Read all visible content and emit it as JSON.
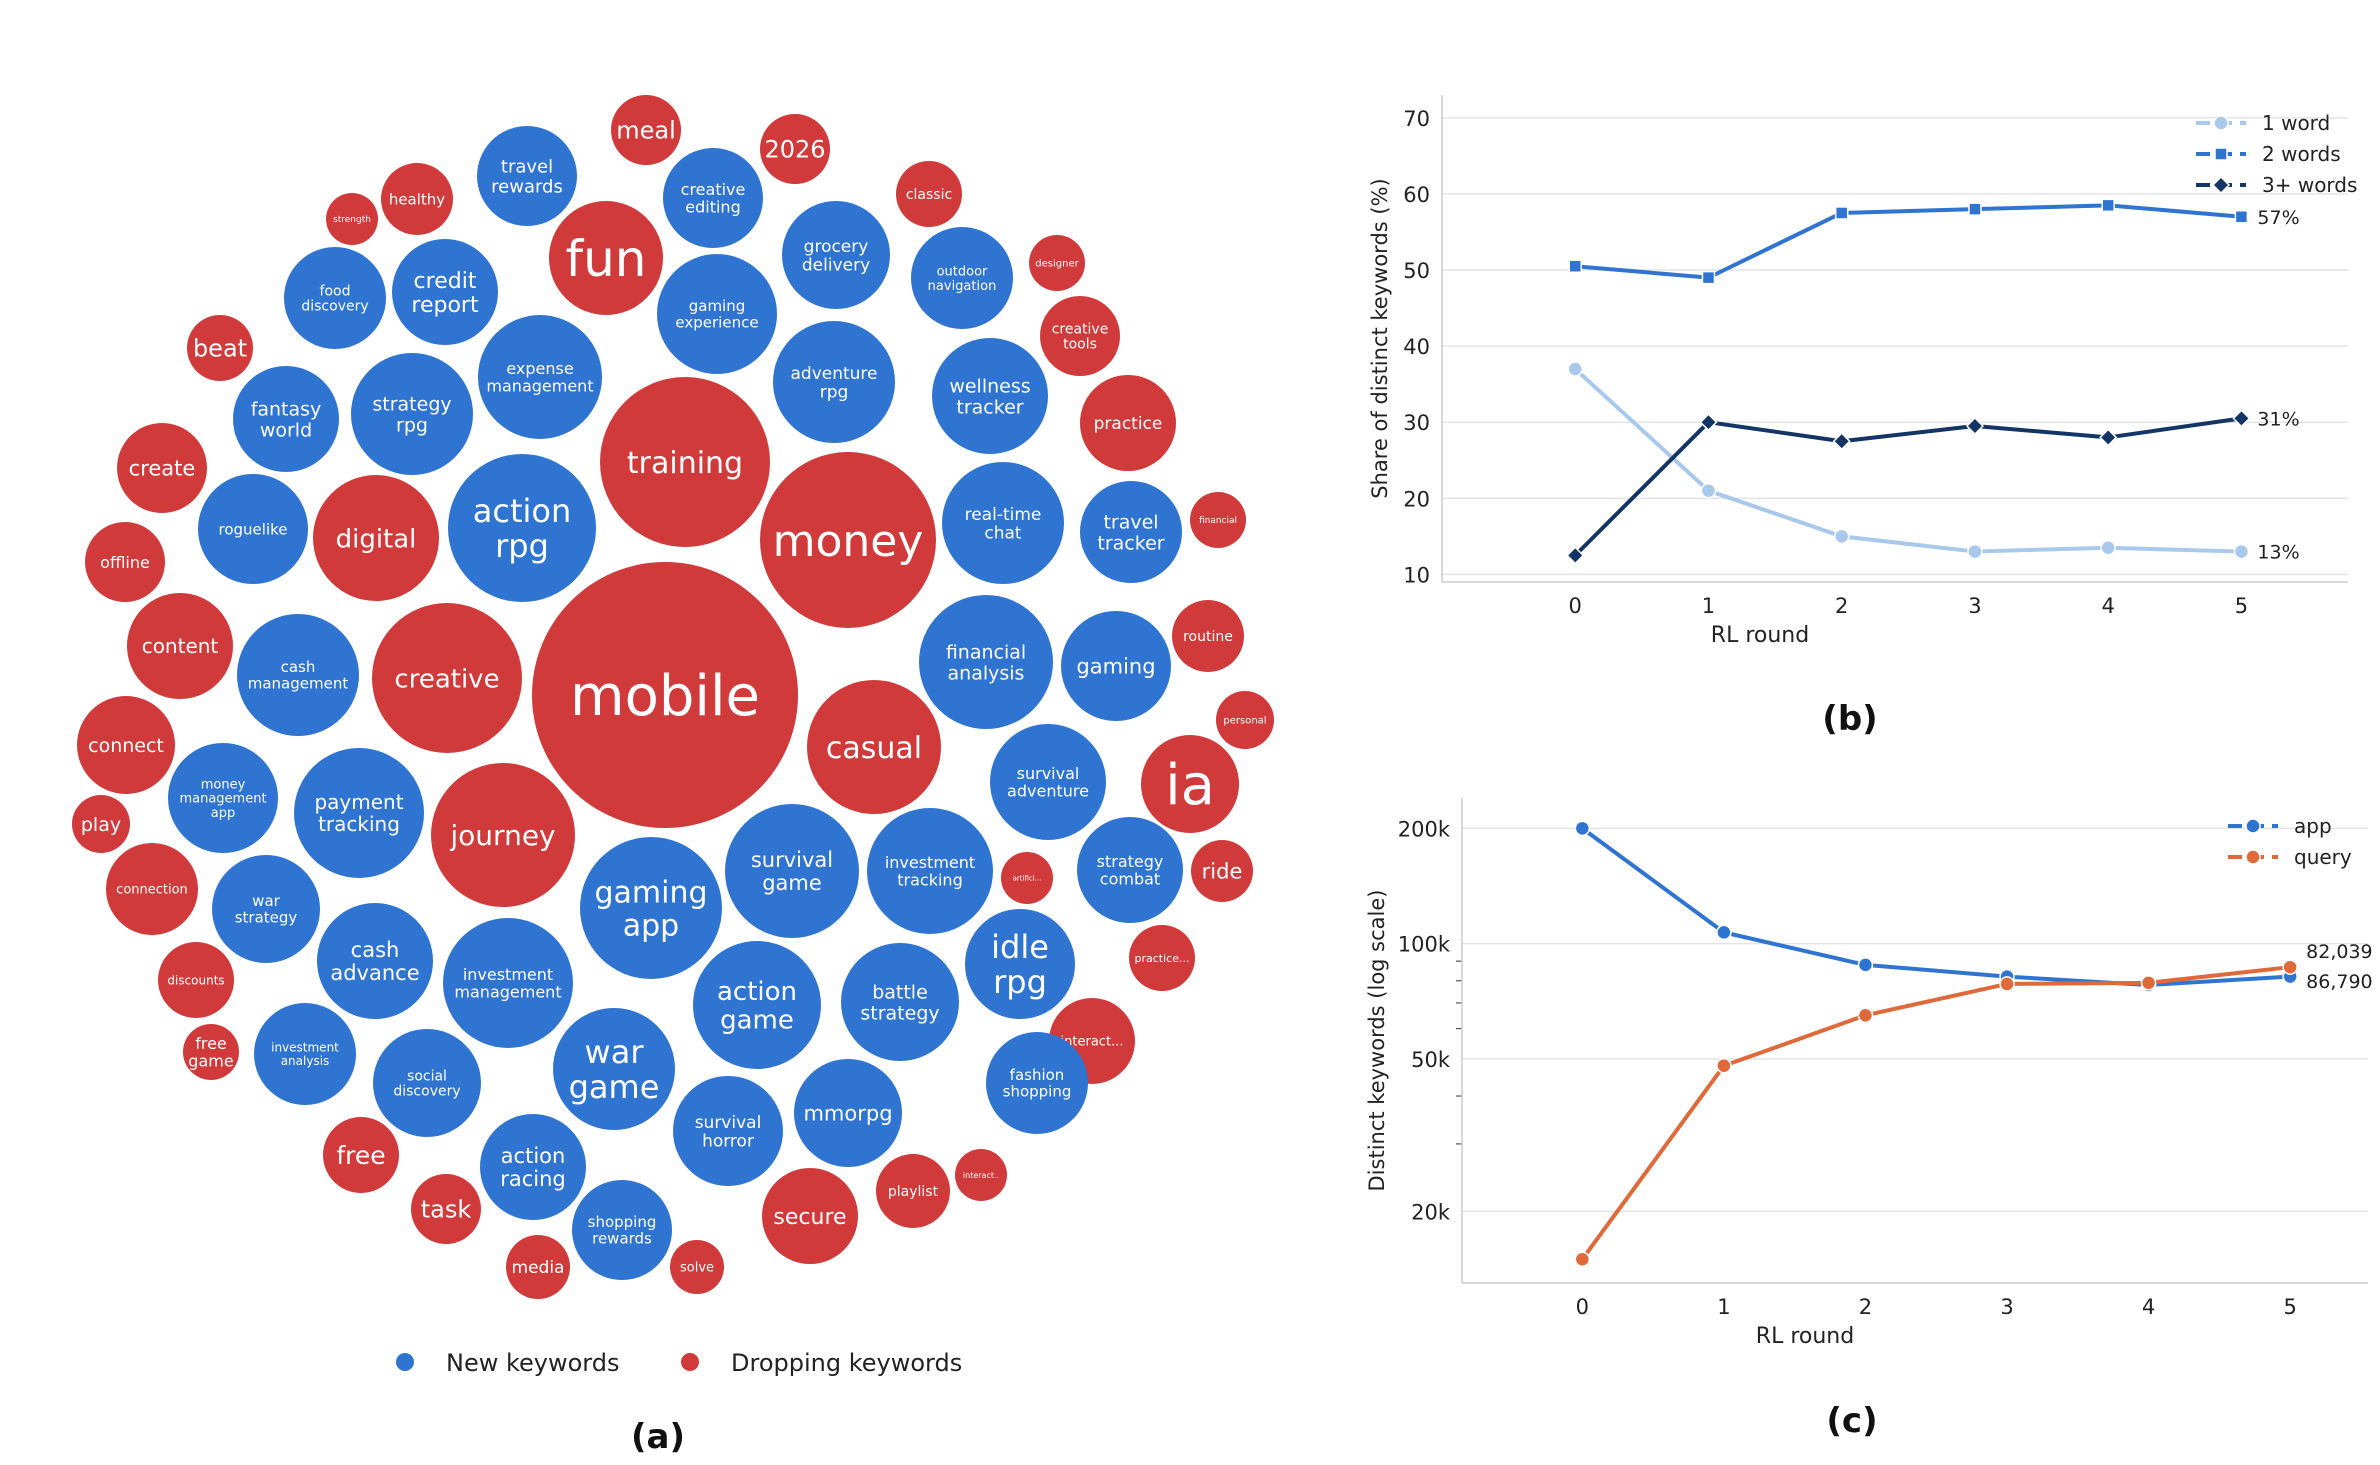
{
  "panels": {
    "a": {
      "label": "(a)"
    },
    "b": {
      "label": "(b)"
    },
    "c": {
      "label": "(c)"
    }
  },
  "colors": {
    "new": "#2f74d0",
    "dropping": "#d03a3a",
    "one_word": "#a8c8ec",
    "two_words": "#2f74d0",
    "three_words": "#123566",
    "app": "#2f74d0",
    "query": "#e0693a"
  },
  "chart_data": [
    {
      "type": "bubble",
      "panel": "(a)",
      "legend": {
        "new": "New keywords",
        "dropping": "Dropping keywords"
      },
      "bubbles": [
        {
          "text": "mobile",
          "group": "dropping"
        },
        {
          "text": "money",
          "group": "dropping"
        },
        {
          "text": "training",
          "group": "dropping"
        },
        {
          "text": "creative",
          "group": "dropping"
        },
        {
          "text": "journey",
          "group": "dropping"
        },
        {
          "text": "casual",
          "group": "dropping"
        },
        {
          "text": "fun",
          "group": "dropping"
        },
        {
          "text": "digital",
          "group": "dropping"
        },
        {
          "text": "ia",
          "group": "dropping"
        },
        {
          "text": "meal",
          "group": "dropping"
        },
        {
          "text": "2026",
          "group": "dropping"
        },
        {
          "text": "healthy",
          "group": "dropping"
        },
        {
          "text": "strength",
          "group": "dropping"
        },
        {
          "text": "classic",
          "group": "dropping"
        },
        {
          "text": "designer",
          "group": "dropping"
        },
        {
          "text": "creative tools",
          "group": "dropping"
        },
        {
          "text": "beat",
          "group": "dropping"
        },
        {
          "text": "create",
          "group": "dropping"
        },
        {
          "text": "practice",
          "group": "dropping"
        },
        {
          "text": "financial",
          "group": "dropping"
        },
        {
          "text": "offline",
          "group": "dropping"
        },
        {
          "text": "content",
          "group": "dropping"
        },
        {
          "text": "routine",
          "group": "dropping"
        },
        {
          "text": "connect",
          "group": "dropping"
        },
        {
          "text": "personal",
          "group": "dropping"
        },
        {
          "text": "play",
          "group": "dropping"
        },
        {
          "text": "connection",
          "group": "dropping"
        },
        {
          "text": "artifici...",
          "group": "dropping"
        },
        {
          "text": "ride",
          "group": "dropping"
        },
        {
          "text": "discounts",
          "group": "dropping"
        },
        {
          "text": "practice...",
          "group": "dropping"
        },
        {
          "text": "free game",
          "group": "dropping"
        },
        {
          "text": "interact...",
          "group": "dropping"
        },
        {
          "text": "free",
          "group": "dropping"
        },
        {
          "text": "interact..",
          "group": "dropping"
        },
        {
          "text": "playlist",
          "group": "dropping"
        },
        {
          "text": "task",
          "group": "dropping"
        },
        {
          "text": "secure",
          "group": "dropping"
        },
        {
          "text": "media",
          "group": "dropping"
        },
        {
          "text": "solve",
          "group": "dropping"
        },
        {
          "text": "action rpg",
          "group": "new"
        },
        {
          "text": "gaming app",
          "group": "new"
        },
        {
          "text": "war game",
          "group": "new"
        },
        {
          "text": "idle rpg",
          "group": "new"
        },
        {
          "text": "action game",
          "group": "new"
        },
        {
          "text": "travel rewards",
          "group": "new"
        },
        {
          "text": "creative editing",
          "group": "new"
        },
        {
          "text": "credit report",
          "group": "new"
        },
        {
          "text": "food discovery",
          "group": "new"
        },
        {
          "text": "grocery delivery",
          "group": "new"
        },
        {
          "text": "outdoor navigation",
          "group": "new"
        },
        {
          "text": "gaming experience",
          "group": "new"
        },
        {
          "text": "expense management",
          "group": "new"
        },
        {
          "text": "strategy rpg",
          "group": "new"
        },
        {
          "text": "fantasy world",
          "group": "new"
        },
        {
          "text": "adventure rpg",
          "group": "new"
        },
        {
          "text": "wellness tracker",
          "group": "new"
        },
        {
          "text": "roguelike",
          "group": "new"
        },
        {
          "text": "real-time chat",
          "group": "new"
        },
        {
          "text": "travel tracker",
          "group": "new"
        },
        {
          "text": "cash management",
          "group": "new"
        },
        {
          "text": "financial analysis",
          "group": "new"
        },
        {
          "text": "gaming",
          "group": "new"
        },
        {
          "text": "money management app",
          "group": "new"
        },
        {
          "text": "payment tracking",
          "group": "new"
        },
        {
          "text": "survival adventure",
          "group": "new"
        },
        {
          "text": "survival game",
          "group": "new"
        },
        {
          "text": "investment tracking",
          "group": "new"
        },
        {
          "text": "strategy combat",
          "group": "new"
        },
        {
          "text": "war strategy",
          "group": "new"
        },
        {
          "text": "cash advance",
          "group": "new"
        },
        {
          "text": "investment management",
          "group": "new"
        },
        {
          "text": "battle strategy",
          "group": "new"
        },
        {
          "text": "investment analysis",
          "group": "new"
        },
        {
          "text": "social discovery",
          "group": "new"
        },
        {
          "text": "fashion shopping",
          "group": "new"
        },
        {
          "text": "action racing",
          "group": "new"
        },
        {
          "text": "survival horror",
          "group": "new"
        },
        {
          "text": "mmorpg",
          "group": "new"
        },
        {
          "text": "shopping rewards",
          "group": "new"
        }
      ]
    },
    {
      "type": "line",
      "panel": "(b)",
      "xlabel": "RL round",
      "ylabel": "Share of distinct keywords (%)",
      "x": [
        0,
        1,
        2,
        3,
        4,
        5
      ],
      "xlim": [
        -1,
        5.8
      ],
      "ylim": [
        9,
        73
      ],
      "yticks": [
        10,
        20,
        30,
        40,
        50,
        60,
        70
      ],
      "grid": true,
      "legend_position": "top-right",
      "series": [
        {
          "name": "1 word",
          "values": [
            37,
            21,
            15,
            13,
            13.5,
            13
          ],
          "end_label": "13%",
          "marker": "circle",
          "color_key": "one_word"
        },
        {
          "name": "2 words",
          "values": [
            50.5,
            49,
            57.5,
            58,
            58.5,
            57
          ],
          "end_label": "57%",
          "marker": "square",
          "color_key": "two_words"
        },
        {
          "name": "3+ words",
          "values": [
            12.5,
            30,
            27.5,
            29.5,
            28,
            30.5
          ],
          "end_label": "31%",
          "marker": "diamond",
          "color_key": "three_words"
        }
      ]
    },
    {
      "type": "line",
      "panel": "(c)",
      "xlabel": "RL round",
      "ylabel": "Distinct keywords (log scale)",
      "yscale": "log",
      "x": [
        0,
        1,
        2,
        3,
        4,
        5
      ],
      "xlim": [
        -0.85,
        5.55
      ],
      "ylim": [
        13000,
        240000
      ],
      "yticks": [
        20000,
        50000,
        100000,
        200000
      ],
      "yticklabels": [
        "20k",
        "50k",
        "100k",
        "200k"
      ],
      "grid": true,
      "legend_position": "top-right",
      "series": [
        {
          "name": "app",
          "values": [
            200000,
            107000,
            88000,
            82000,
            78000,
            82039
          ],
          "end_label": "82,039",
          "marker": "circle",
          "color_key": "app"
        },
        {
          "name": "query",
          "values": [
            15000,
            48000,
            65000,
            78500,
            79000,
            86790
          ],
          "end_label": "86,790",
          "marker": "circle",
          "color_key": "query"
        }
      ]
    }
  ]
}
